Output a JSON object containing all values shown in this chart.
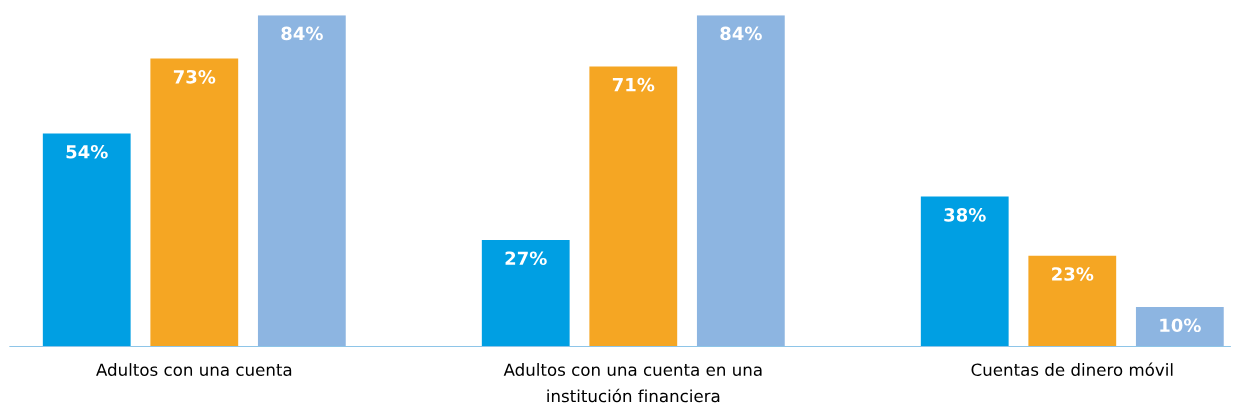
{
  "chart_data": {
    "type": "bar",
    "categories": [
      "Adultos con una cuenta",
      "Adultos con una cuenta en una\ninstitución financiera",
      "Cuentas de dinero móvil"
    ],
    "series": [
      {
        "color": "#009fe3",
        "values": [
          54,
          27,
          38
        ],
        "value_labels": [
          "54%",
          "27%",
          "38%"
        ]
      },
      {
        "color": "#f5a623",
        "values": [
          73,
          71,
          23
        ],
        "value_labels": [
          "73%",
          "71%",
          "23%"
        ]
      },
      {
        "color": "#8db5e1",
        "values": [
          84,
          84,
          10
        ],
        "value_labels": [
          "84%",
          "84%",
          "10%"
        ]
      }
    ],
    "tick_labels": "x",
    "grid": false,
    "legend": false
  }
}
